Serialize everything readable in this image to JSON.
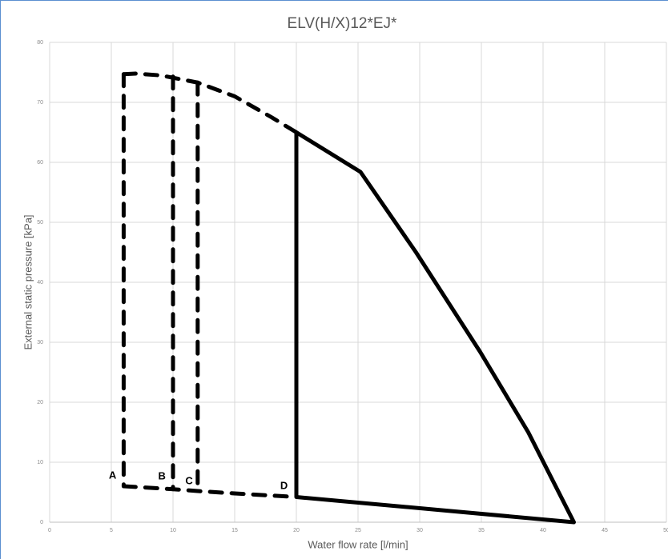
{
  "chart_data": {
    "type": "line",
    "title": "ELV(H/X)12*EJ*",
    "x_label": "Water flow rate [l/min]",
    "y_label": "External static pressure [kPa]",
    "xlim": [
      0,
      50
    ],
    "xticks": [
      0,
      5,
      10,
      15,
      20,
      25,
      30,
      35,
      40,
      45,
      50
    ],
    "ylim": [
      0,
      80
    ],
    "yticks": [
      0,
      10,
      20,
      30,
      40,
      50,
      60,
      70,
      80
    ],
    "grid": true,
    "series": [
      {
        "color": "#000000",
        "dashed": true,
        "x": [
          6,
          7,
          9,
          12,
          15,
          18,
          20
        ],
        "values": [
          74.7,
          74.8,
          74.5,
          73.3,
          71,
          67.5,
          65
        ]
      },
      {
        "color": "#000000",
        "dashed": true,
        "x": [
          6,
          6
        ],
        "values": [
          74.7,
          6
        ]
      },
      {
        "color": "#000000",
        "dashed": true,
        "x": [
          10,
          10
        ],
        "values": [
          74.3,
          5.5
        ]
      },
      {
        "color": "#000000",
        "dashed": true,
        "x": [
          12,
          12
        ],
        "values": [
          73.3,
          5.2
        ]
      },
      {
        "color": "#000000",
        "dashed": true,
        "x": [
          6,
          10,
          12,
          15,
          20
        ],
        "values": [
          6,
          5.5,
          5.2,
          4.8,
          4.2
        ]
      },
      {
        "color": "#000000",
        "dashed": false,
        "x": [
          20,
          20,
          25.2,
          29.7,
          34.9,
          38.8,
          42.5,
          20
        ],
        "values": [
          4.2,
          65,
          58.4,
          45,
          28.4,
          15,
          0,
          4.2
        ]
      }
    ],
    "annotations": [
      {
        "text": "A",
        "x": 5.1,
        "y": 7.7
      },
      {
        "text": "B",
        "x": 9.1,
        "y": 7.6
      },
      {
        "text": "C",
        "x": 11.3,
        "y": 6.8
      },
      {
        "text": "D",
        "x": 19.0,
        "y": 6.0
      }
    ]
  }
}
